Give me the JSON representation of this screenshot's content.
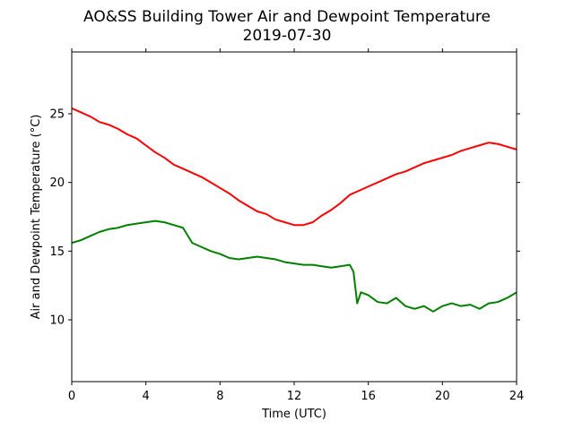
{
  "chart_data": {
    "type": "line",
    "title": "AO&SS Building Tower Air and Dewpoint Temperature",
    "subtitle": "2019-07-30",
    "xlabel": "Time (UTC)",
    "ylabel": "Air and Dewpoint Temperature (°C)",
    "xlim": [
      0,
      24
    ],
    "ylim": [
      5.5,
      29.5
    ],
    "xticks": [
      0,
      4,
      8,
      12,
      16,
      20,
      24
    ],
    "yticks": [
      10,
      15,
      20,
      25
    ],
    "grid": false,
    "legend": "none",
    "series": [
      {
        "color": "#ff0000",
        "x": [
          0,
          0.5,
          1,
          1.5,
          2,
          2.5,
          3,
          3.5,
          4,
          4.5,
          5,
          5.5,
          6,
          6.5,
          7,
          7.5,
          8,
          8.5,
          9,
          9.5,
          10,
          10.5,
          11,
          11.5,
          12,
          12.5,
          13,
          13.5,
          14,
          14.5,
          15,
          15.5,
          16,
          16.5,
          17,
          17.5,
          18,
          18.5,
          19,
          19.5,
          20,
          20.5,
          21,
          21.5,
          22,
          22.5,
          23,
          23.5,
          24
        ],
        "values": [
          25.4,
          25.1,
          24.8,
          24.4,
          24.2,
          23.9,
          23.5,
          23.2,
          22.7,
          22.2,
          21.8,
          21.3,
          21.0,
          20.7,
          20.4,
          20.0,
          19.6,
          19.2,
          18.7,
          18.3,
          17.9,
          17.7,
          17.3,
          17.1,
          16.9,
          16.9,
          17.1,
          17.6,
          18.0,
          18.5,
          19.1,
          19.4,
          19.7,
          20.0,
          20.3,
          20.6,
          20.8,
          21.1,
          21.4,
          21.6,
          21.8,
          22.0,
          22.3,
          22.5,
          22.7,
          22.9,
          22.8,
          22.6,
          22.4
        ]
      },
      {
        "color": "#008000",
        "x": [
          0,
          0.5,
          1,
          1.5,
          2,
          2.5,
          3,
          3.5,
          4,
          4.5,
          5,
          5.5,
          6,
          6.5,
          7,
          7.5,
          8,
          8.5,
          9,
          9.5,
          10,
          10.5,
          11,
          11.5,
          12,
          12.5,
          13,
          13.5,
          14,
          14.5,
          15,
          15.2,
          15.4,
          15.6,
          16,
          16.5,
          17,
          17.5,
          18,
          18.5,
          19,
          19.5,
          20,
          20.5,
          21,
          21.5,
          22,
          22.5,
          23,
          23.5,
          24
        ],
        "values": [
          15.6,
          15.8,
          16.1,
          16.4,
          16.6,
          16.7,
          16.9,
          17.0,
          17.1,
          17.2,
          17.1,
          16.9,
          16.7,
          15.6,
          15.3,
          15.0,
          14.8,
          14.5,
          14.4,
          14.5,
          14.6,
          14.5,
          14.4,
          14.2,
          14.1,
          14.0,
          14.0,
          13.9,
          13.8,
          13.9,
          14.0,
          13.5,
          11.2,
          12.0,
          11.8,
          11.3,
          11.2,
          11.6,
          11.0,
          10.8,
          11.0,
          10.6,
          11.0,
          11.2,
          11.0,
          11.1,
          10.8,
          11.2,
          11.3,
          11.6,
          12.0
        ]
      }
    ]
  }
}
